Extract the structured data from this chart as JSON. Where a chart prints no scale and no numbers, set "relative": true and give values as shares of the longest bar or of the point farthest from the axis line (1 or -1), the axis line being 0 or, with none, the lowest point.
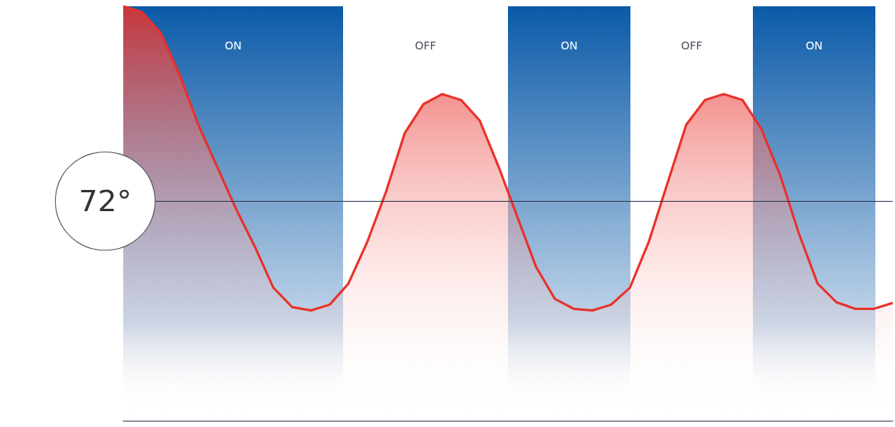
{
  "chart_data": {
    "type": "area",
    "relative": true,
    "marker": "none",
    "line_style": "solid",
    "categories": [
      null,
      null,
      null,
      null,
      null,
      null,
      null,
      null,
      null,
      null,
      null,
      null,
      null,
      null,
      null,
      null,
      null,
      null,
      null,
      null,
      null,
      null,
      null,
      null,
      null,
      null,
      null,
      null,
      null,
      null,
      null,
      null,
      null,
      null,
      null,
      null,
      null,
      null,
      null,
      null,
      null,
      null
    ],
    "series": [
      {
        "color": "#e8312a",
        "values": [
          1.0,
          0.986,
          0.935,
          0.835,
          0.714,
          0.613,
          0.512,
          0.421,
          0.321,
          0.274,
          0.266,
          0.28,
          0.331,
          0.431,
          0.552,
          0.694,
          0.764,
          0.788,
          0.774,
          0.724,
          0.613,
          0.492,
          0.371,
          0.294,
          0.27,
          0.266,
          0.28,
          0.321,
          0.431,
          0.573,
          0.714,
          0.774,
          0.788,
          0.774,
          0.704,
          0.593,
          0.452,
          0.331,
          0.286,
          0.27,
          0.27,
          0.284
        ]
      }
    ],
    "ref_lines": [
      {
        "axis": "y",
        "value": 0.526,
        "color": "#2b3550"
      }
    ],
    "annotations": [
      "72°",
      "ON",
      "OFF",
      "ON",
      "OFF",
      "ON"
    ]
  }
}
